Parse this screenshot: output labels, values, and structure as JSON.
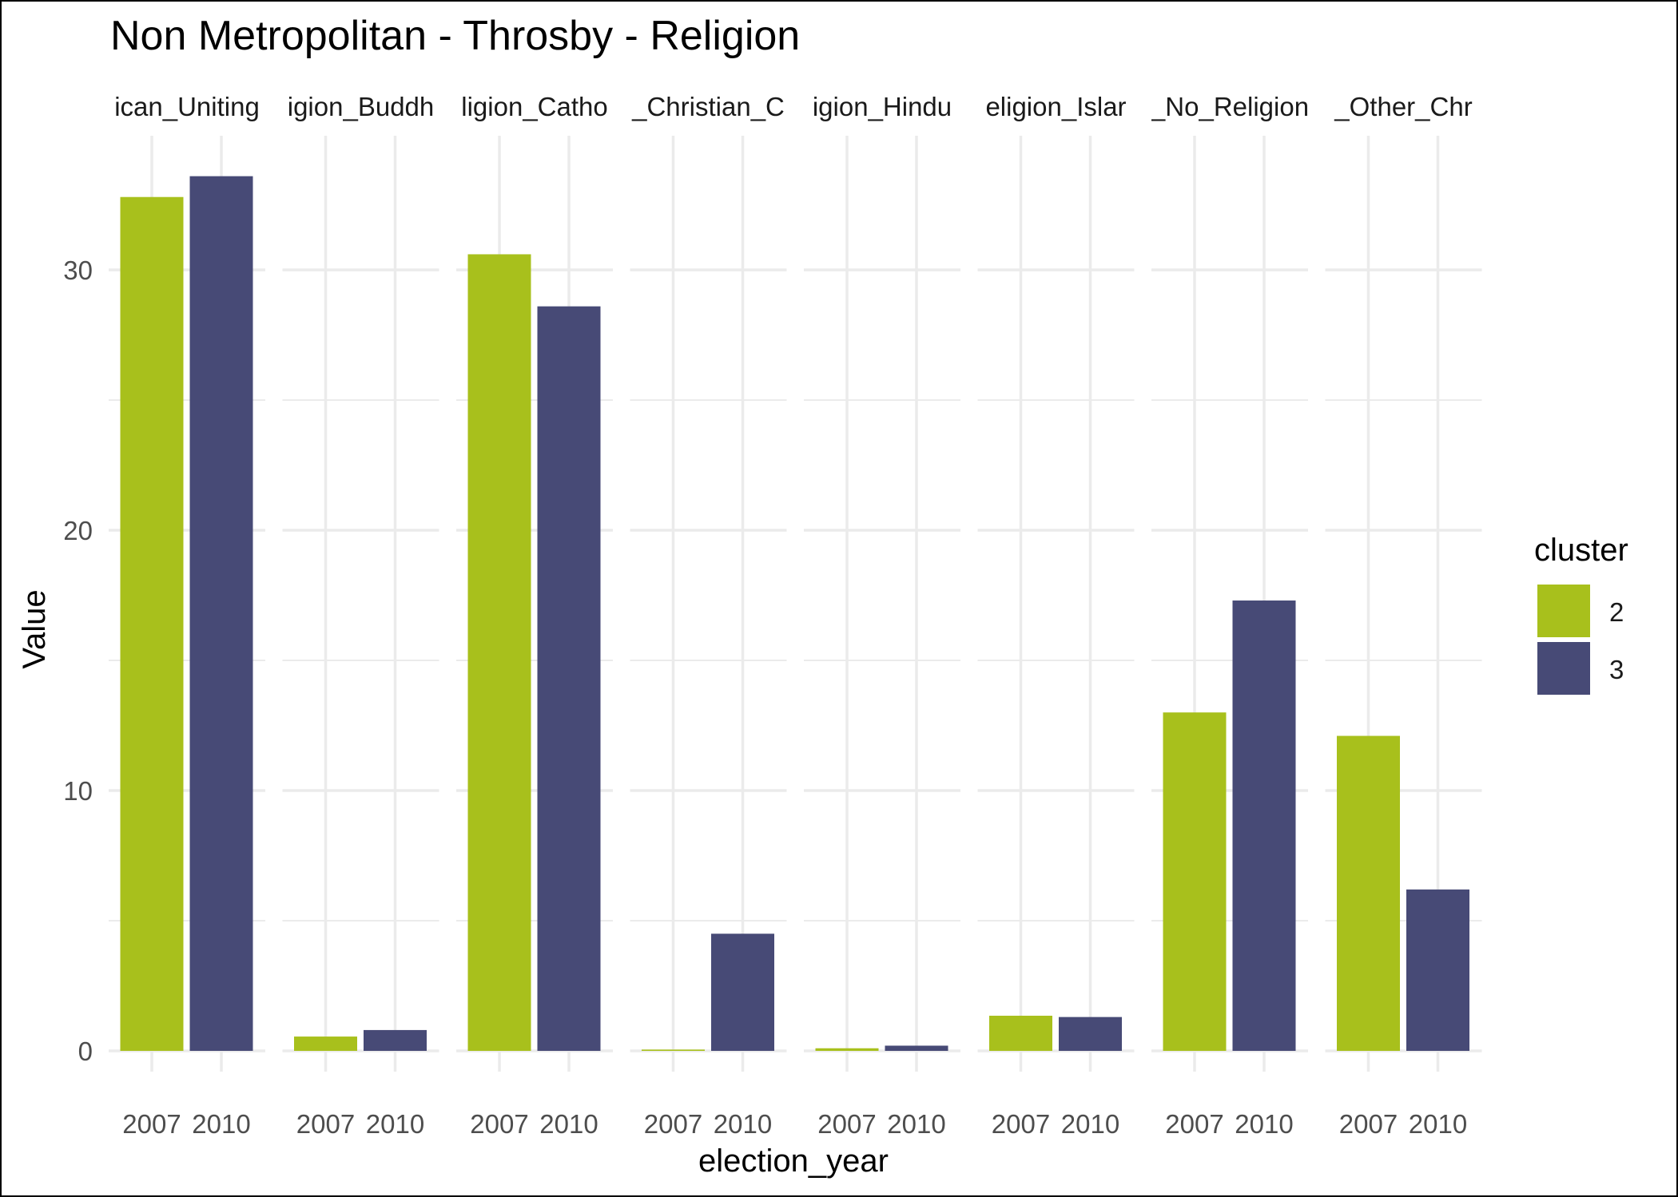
{
  "chart_data": {
    "type": "bar",
    "title": "Non Metropolitan - Throsby - Religion",
    "xlabel": "election_year",
    "ylabel": "Value",
    "ylim": [
      0,
      35
    ],
    "y_ticks": [
      0,
      10,
      20,
      30
    ],
    "grid": true,
    "legend": {
      "title": "cluster",
      "placement": "right"
    },
    "x": [
      "2007",
      "2010"
    ],
    "facets": [
      {
        "label": "ican_Uniting",
        "values": [
          32.8,
          33.6
        ]
      },
      {
        "label": "igion_Buddh",
        "values": [
          0.55,
          0.8
        ]
      },
      {
        "label": "ligion_Catho",
        "values": [
          30.6,
          28.6
        ]
      },
      {
        "label": "_Christian_C",
        "values": [
          0.05,
          4.5
        ]
      },
      {
        "label": "igion_Hindu",
        "values": [
          0.1,
          0.2
        ]
      },
      {
        "label": "eligion_Islar",
        "values": [
          1.35,
          1.3
        ]
      },
      {
        "label": "_No_Religion",
        "values": [
          13.0,
          17.3
        ]
      },
      {
        "label": "_Other_Chr",
        "values": [
          12.1,
          6.2
        ]
      }
    ],
    "series": [
      {
        "name": "2",
        "color": "#a8c01c"
      },
      {
        "name": "3",
        "color": "#474a76"
      }
    ]
  }
}
